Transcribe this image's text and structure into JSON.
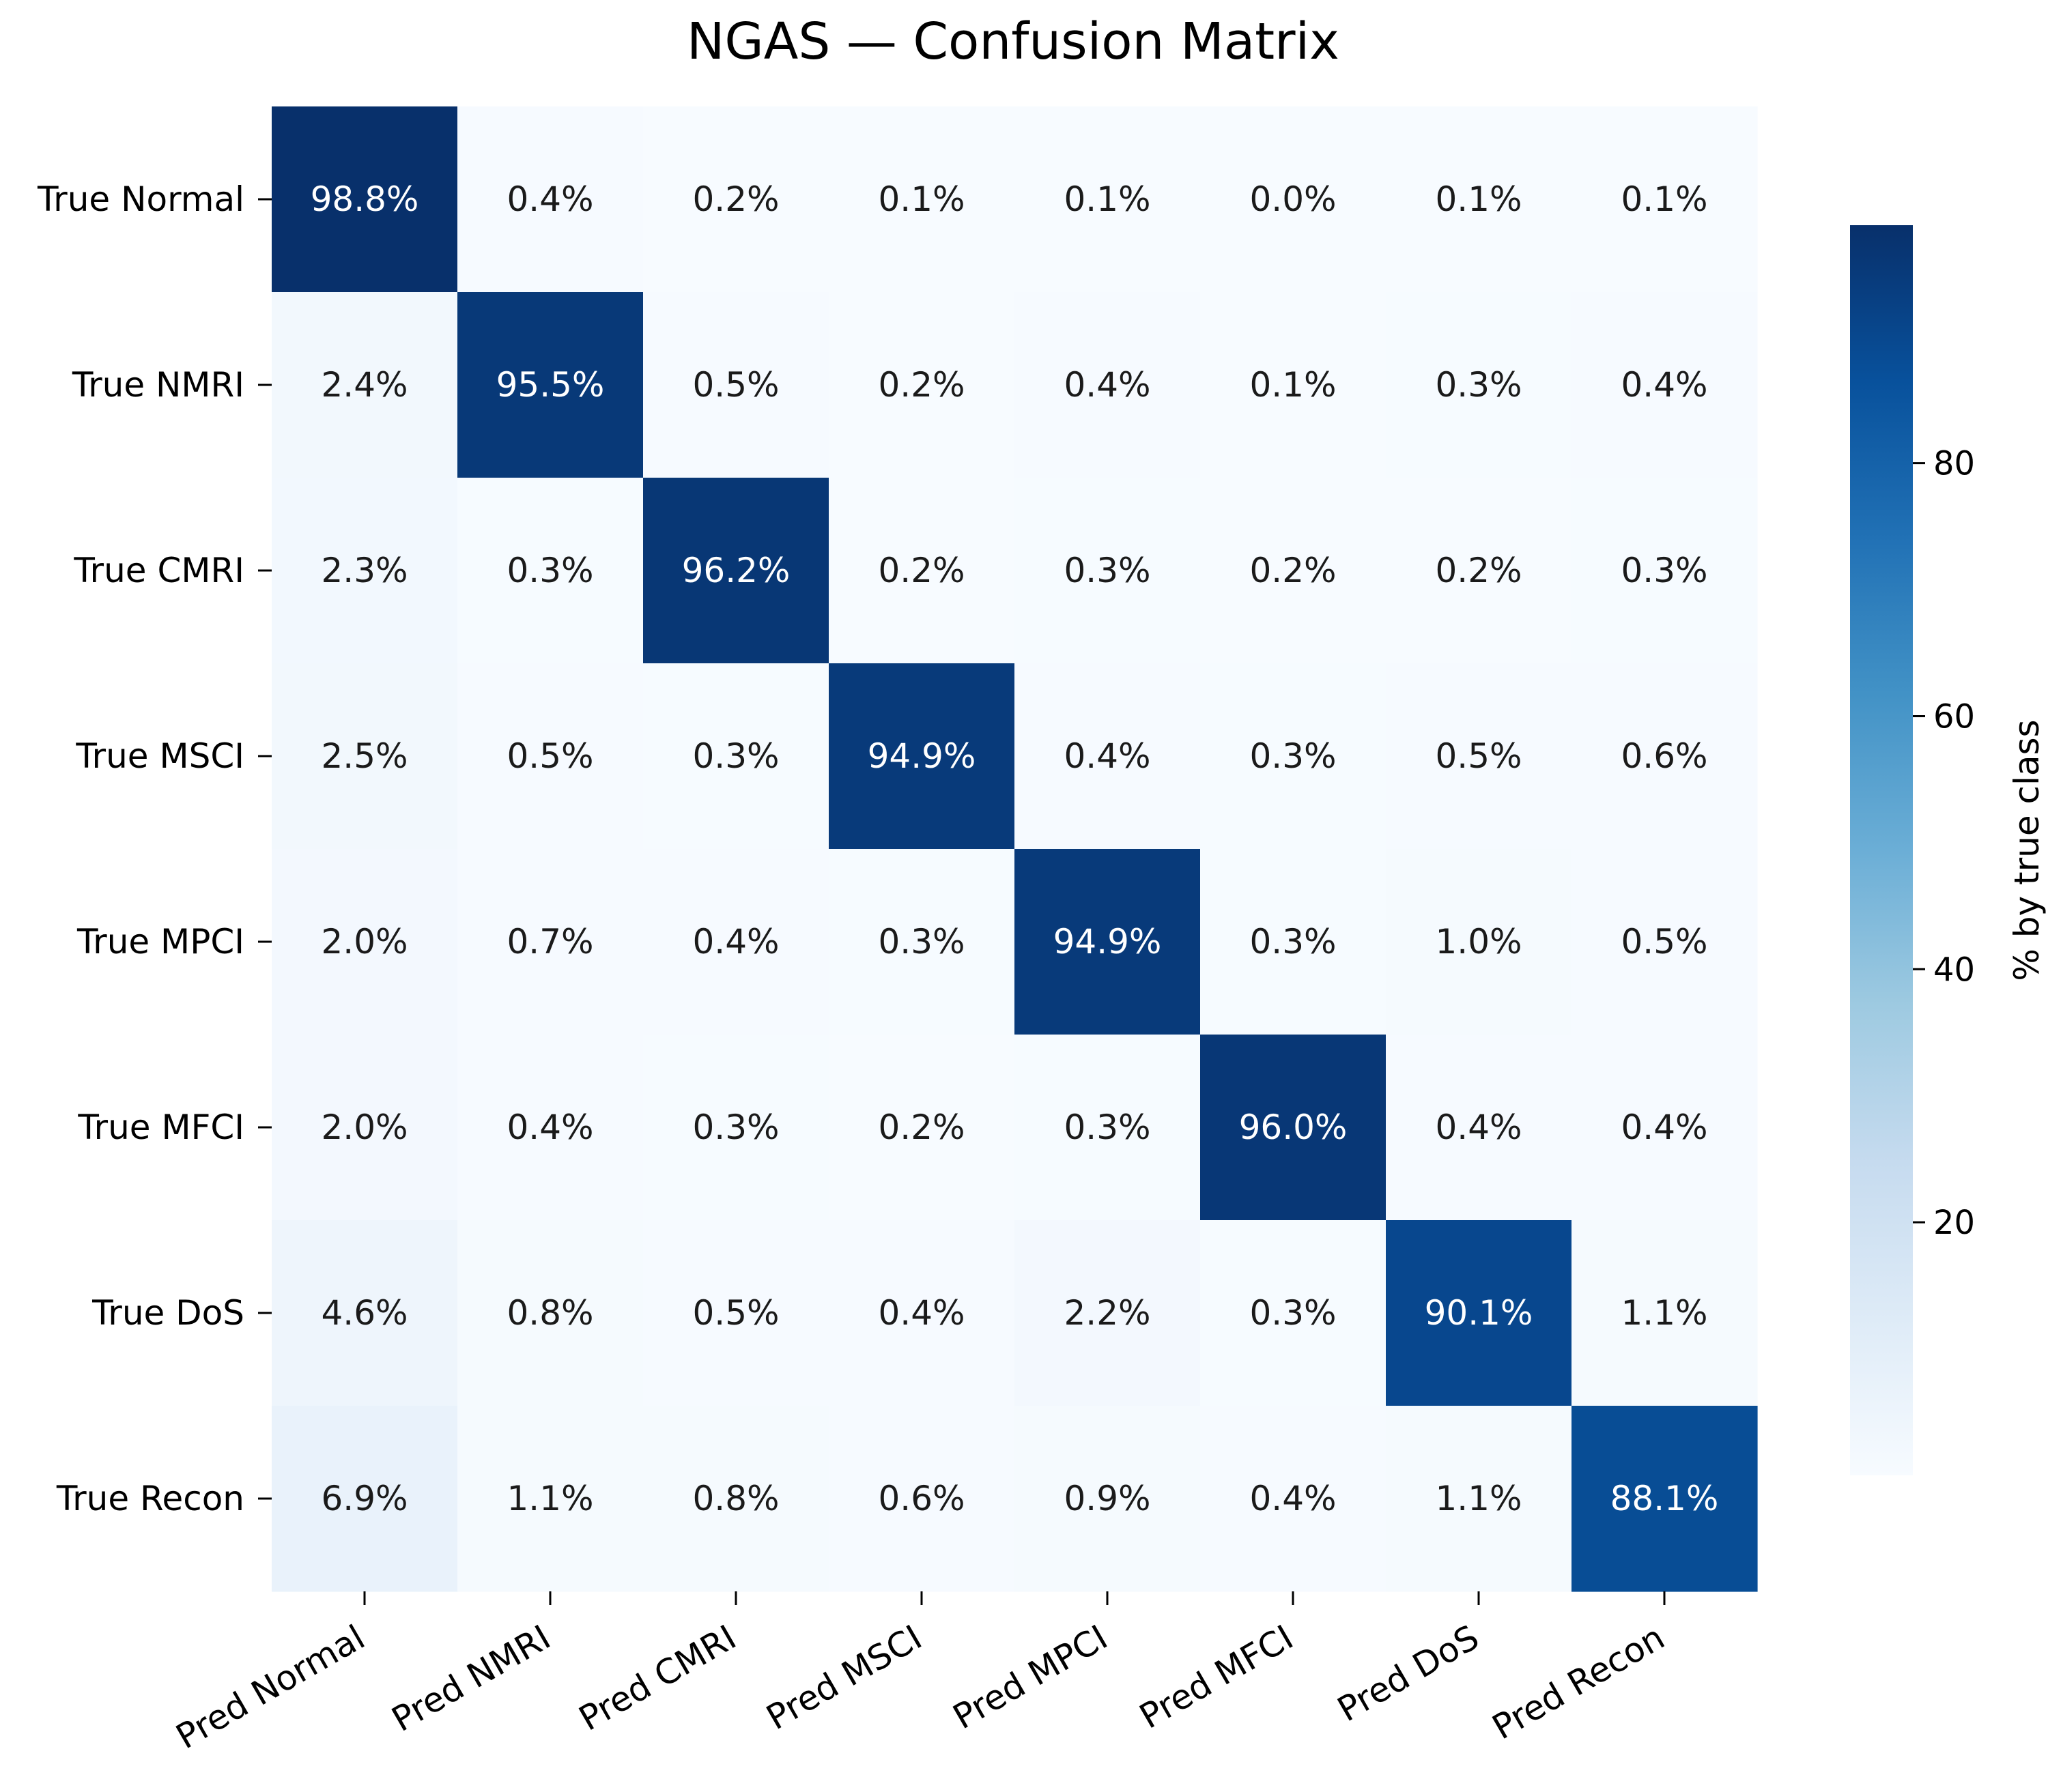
{
  "chart_data": {
    "type": "heatmap",
    "title": "NGAS — Confusion Matrix",
    "row_labels": [
      "True Normal",
      "True NMRI",
      "True CMRI",
      "True MSCI",
      "True MPCI",
      "True MFCI",
      "True DoS",
      "True Recon"
    ],
    "col_labels": [
      "Pred Normal",
      "Pred NMRI",
      "Pred CMRI",
      "Pred MSCI",
      "Pred MPCI",
      "Pred MFCI",
      "Pred DoS",
      "Pred Recon"
    ],
    "values": [
      [
        98.8,
        0.4,
        0.2,
        0.1,
        0.1,
        0.0,
        0.1,
        0.1
      ],
      [
        2.4,
        95.5,
        0.5,
        0.2,
        0.4,
        0.1,
        0.3,
        0.4
      ],
      [
        2.3,
        0.3,
        96.2,
        0.2,
        0.3,
        0.2,
        0.2,
        0.3
      ],
      [
        2.5,
        0.5,
        0.3,
        94.9,
        0.4,
        0.3,
        0.5,
        0.6
      ],
      [
        2.0,
        0.7,
        0.4,
        0.3,
        94.9,
        0.3,
        1.0,
        0.5
      ],
      [
        2.0,
        0.4,
        0.3,
        0.2,
        0.3,
        96.0,
        0.4,
        0.4
      ],
      [
        4.6,
        0.8,
        0.5,
        0.4,
        2.2,
        0.3,
        90.1,
        1.1
      ],
      [
        6.9,
        1.1,
        0.8,
        0.6,
        0.9,
        0.4,
        1.1,
        88.1
      ]
    ],
    "value_format": "%",
    "colormap": "Blues",
    "colorbar": {
      "label": "% by true class",
      "ticks": [
        20,
        40,
        60,
        80
      ],
      "vmin": 0.0,
      "vmax": 98.8
    }
  }
}
